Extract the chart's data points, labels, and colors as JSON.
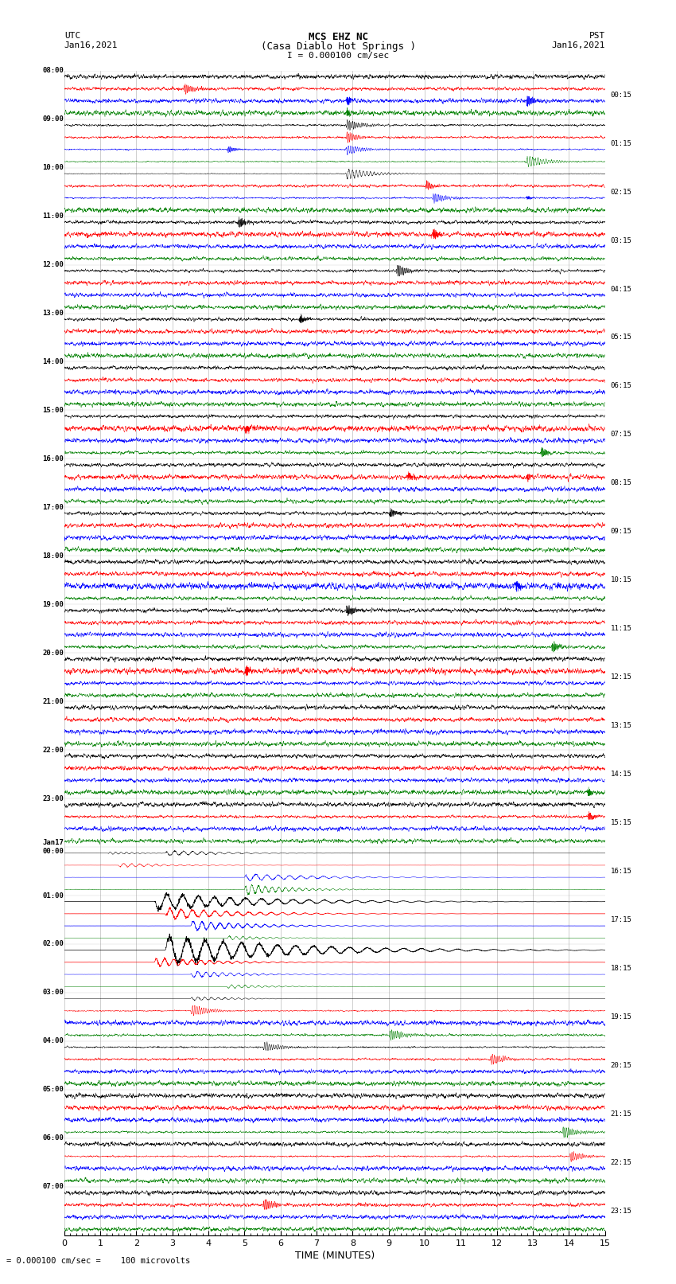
{
  "title_line1": "MCS EHZ NC",
  "title_line2": "(Casa Diablo Hot Springs )",
  "scale_label": "I = 0.000100 cm/sec",
  "xlabel": "TIME (MINUTES)",
  "bottom_label": "= 0.000100 cm/sec =    100 microvolts",
  "utc_label": "UTC",
  "utc_date": "Jan16,2021",
  "pst_label": "PST",
  "pst_date": "Jan16,2021",
  "left_times": [
    "08:00",
    "09:00",
    "10:00",
    "11:00",
    "12:00",
    "13:00",
    "14:00",
    "15:00",
    "16:00",
    "17:00",
    "18:00",
    "19:00",
    "20:00",
    "21:00",
    "22:00",
    "23:00",
    "Jan17\n00:00",
    "01:00",
    "02:00",
    "03:00",
    "04:00",
    "05:00",
    "06:00",
    "07:00"
  ],
  "right_times": [
    "00:15",
    "01:15",
    "02:15",
    "03:15",
    "04:15",
    "05:15",
    "06:15",
    "07:15",
    "08:15",
    "09:15",
    "10:15",
    "11:15",
    "12:15",
    "13:15",
    "14:15",
    "15:15",
    "16:15",
    "17:15",
    "18:15",
    "19:15",
    "20:15",
    "21:15",
    "22:15",
    "23:15"
  ],
  "num_rows": 24,
  "traces_per_row": 4,
  "colors": [
    "black",
    "red",
    "blue",
    "green"
  ],
  "bg_color": "white",
  "fig_width": 8.5,
  "fig_height": 16.13,
  "x_min": 0,
  "x_max": 15,
  "x_ticks": [
    0,
    1,
    2,
    3,
    4,
    5,
    6,
    7,
    8,
    9,
    10,
    11,
    12,
    13,
    14,
    15
  ],
  "grid_color": "#888888",
  "trace_lw": 0.35,
  "noise_amp": 0.03,
  "events": [
    {
      "row": 0,
      "trace": 1,
      "x": 3.3,
      "amp": 0.25,
      "dur": 0.3
    },
    {
      "row": 0,
      "trace": 2,
      "x": 7.8,
      "amp": 0.18,
      "dur": 0.15
    },
    {
      "row": 0,
      "trace": 3,
      "x": 7.8,
      "amp": 0.12,
      "dur": 0.15
    },
    {
      "row": 0,
      "trace": 2,
      "x": 12.8,
      "amp": 0.22,
      "dur": 0.2
    },
    {
      "row": 1,
      "trace": 2,
      "x": 4.5,
      "amp": 0.35,
      "dur": 0.25
    },
    {
      "row": 1,
      "trace": 0,
      "x": 7.8,
      "amp": 0.45,
      "dur": 0.4
    },
    {
      "row": 1,
      "trace": 1,
      "x": 7.8,
      "amp": 0.35,
      "dur": 0.35
    },
    {
      "row": 1,
      "trace": 2,
      "x": 7.8,
      "amp": 0.55,
      "dur": 0.5
    },
    {
      "row": 1,
      "trace": 3,
      "x": 12.8,
      "amp": 0.8,
      "dur": 0.6
    },
    {
      "row": 2,
      "trace": 0,
      "x": 7.8,
      "amp": 1.2,
      "dur": 0.8
    },
    {
      "row": 2,
      "trace": 1,
      "x": 10.0,
      "amp": 0.3,
      "dur": 0.25
    },
    {
      "row": 2,
      "trace": 2,
      "x": 10.2,
      "amp": 0.5,
      "dur": 0.4
    },
    {
      "row": 2,
      "trace": 2,
      "x": 12.8,
      "amp": 0.2,
      "dur": 0.15
    },
    {
      "row": 3,
      "trace": 0,
      "x": 4.8,
      "amp": 0.25,
      "dur": 0.2
    },
    {
      "row": 3,
      "trace": 1,
      "x": 10.2,
      "amp": 0.2,
      "dur": 0.15
    },
    {
      "row": 4,
      "trace": 0,
      "x": 9.2,
      "amp": 0.4,
      "dur": 0.3
    },
    {
      "row": 5,
      "trace": 0,
      "x": 6.5,
      "amp": 0.2,
      "dur": 0.15
    },
    {
      "row": 7,
      "trace": 1,
      "x": 5.0,
      "amp": 0.15,
      "dur": 0.15
    },
    {
      "row": 7,
      "trace": 3,
      "x": 13.2,
      "amp": 0.25,
      "dur": 0.2
    },
    {
      "row": 8,
      "trace": 1,
      "x": 9.5,
      "amp": 0.15,
      "dur": 0.15
    },
    {
      "row": 8,
      "trace": 1,
      "x": 12.8,
      "amp": 0.12,
      "dur": 0.12
    },
    {
      "row": 9,
      "trace": 0,
      "x": 9.0,
      "amp": 0.2,
      "dur": 0.2
    },
    {
      "row": 10,
      "trace": 2,
      "x": 12.5,
      "amp": 0.15,
      "dur": 0.15
    },
    {
      "row": 11,
      "trace": 0,
      "x": 7.8,
      "amp": 0.25,
      "dur": 0.2
    },
    {
      "row": 11,
      "trace": 3,
      "x": 13.5,
      "amp": 0.25,
      "dur": 0.2
    },
    {
      "row": 12,
      "trace": 1,
      "x": 5.0,
      "amp": 0.15,
      "dur": 0.12
    },
    {
      "row": 14,
      "trace": 3,
      "x": 14.5,
      "amp": 0.15,
      "dur": 0.12
    },
    {
      "row": 15,
      "trace": 1,
      "x": 14.5,
      "amp": 0.25,
      "dur": 0.2
    },
    {
      "row": 16,
      "trace": 0,
      "x": 1.2,
      "amp": 1.5,
      "dur": 1.2
    },
    {
      "row": 16,
      "trace": 1,
      "x": 1.5,
      "amp": 2.5,
      "dur": 1.8
    },
    {
      "row": 16,
      "trace": 2,
      "x": 5.0,
      "amp": 4.5,
      "dur": 2.5
    },
    {
      "row": 16,
      "trace": 3,
      "x": 5.0,
      "amp": 1.5,
      "dur": 1.5
    },
    {
      "row": 16,
      "trace": 0,
      "x": 2.8,
      "amp": 3.0,
      "dur": 2.0
    },
    {
      "row": 17,
      "trace": 0,
      "x": 2.5,
      "amp": 12.0,
      "dur": 3.5
    },
    {
      "row": 17,
      "trace": 1,
      "x": 2.8,
      "amp": 8.0,
      "dur": 2.5
    },
    {
      "row": 17,
      "trace": 2,
      "x": 3.5,
      "amp": 6.0,
      "dur": 2.0
    },
    {
      "row": 17,
      "trace": 3,
      "x": 4.5,
      "amp": 3.0,
      "dur": 1.5
    },
    {
      "row": 18,
      "trace": 0,
      "x": 2.8,
      "amp": 20.0,
      "dur": 4.0
    },
    {
      "row": 18,
      "trace": 1,
      "x": 2.5,
      "amp": 6.0,
      "dur": 2.0
    },
    {
      "row": 18,
      "trace": 2,
      "x": 3.5,
      "amp": 4.0,
      "dur": 1.8
    },
    {
      "row": 18,
      "trace": 3,
      "x": 4.5,
      "amp": 2.5,
      "dur": 1.5
    },
    {
      "row": 19,
      "trace": 0,
      "x": 3.5,
      "amp": 2.5,
      "dur": 1.5
    },
    {
      "row": 19,
      "trace": 1,
      "x": 3.5,
      "amp": 0.8,
      "dur": 0.5
    },
    {
      "row": 19,
      "trace": 3,
      "x": 9.0,
      "amp": 0.4,
      "dur": 0.4
    },
    {
      "row": 20,
      "trace": 0,
      "x": 5.5,
      "amp": 0.5,
      "dur": 0.5
    },
    {
      "row": 20,
      "trace": 1,
      "x": 11.8,
      "amp": 0.4,
      "dur": 0.4
    },
    {
      "row": 21,
      "trace": 3,
      "x": 13.8,
      "amp": 0.5,
      "dur": 0.4
    },
    {
      "row": 22,
      "trace": 1,
      "x": 14.0,
      "amp": 0.5,
      "dur": 0.4
    },
    {
      "row": 23,
      "trace": 1,
      "x": 5.5,
      "amp": 0.3,
      "dur": 0.3
    }
  ]
}
